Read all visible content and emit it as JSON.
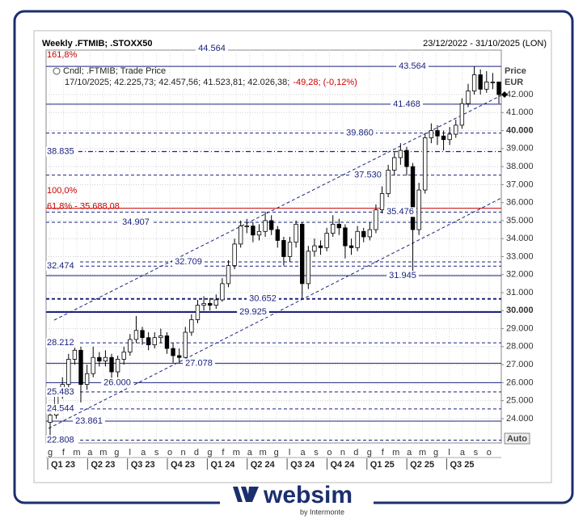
{
  "chart_data": {
    "type": "candlestick",
    "title": "Weekly .FTMIB; .STOXX50",
    "date_range": "23/12/2022 - 31/10/2025 (LON)",
    "legend_title": "Cndl; .FTMIB; Trade Price",
    "legend_values": "17/10/2025; 42.225,73; 42.457,56; 41.523,81; 42.026,38;",
    "legend_change": "-49,28; (-0,12%)",
    "y_axis_label": "Price",
    "y_axis_unit": "EUR",
    "auto_button": "Auto",
    "ylim": [
      22650,
      44470
    ],
    "yticks": [
      {
        "value": 24000,
        "label": "24.000"
      },
      {
        "value": 25000,
        "label": "25.000"
      },
      {
        "value": 26000,
        "label": "26.000"
      },
      {
        "value": 27000,
        "label": "27.000"
      },
      {
        "value": 28000,
        "label": "28.000"
      },
      {
        "value": 29000,
        "label": "29.000"
      },
      {
        "value": 30000,
        "label": "30.000",
        "bold": true
      },
      {
        "value": 31000,
        "label": "31.000"
      },
      {
        "value": 32000,
        "label": "32.000"
      },
      {
        "value": 33000,
        "label": "33.000"
      },
      {
        "value": 34000,
        "label": "34.000"
      },
      {
        "value": 35000,
        "label": "35.000"
      },
      {
        "value": 36000,
        "label": "36.000"
      },
      {
        "value": 37000,
        "label": "37.000"
      },
      {
        "value": 38000,
        "label": "38.000"
      },
      {
        "value": 39000,
        "label": "39.000"
      },
      {
        "value": 40000,
        "label": "40.000",
        "bold": true
      },
      {
        "value": 41000,
        "label": "41.000"
      },
      {
        "value": 42000,
        "label": "42.000"
      }
    ],
    "grid": true,
    "month_labels": [
      "g",
      "f",
      "m",
      "a",
      "m",
      "g",
      "l",
      "a",
      "s",
      "o",
      "n",
      "d",
      "g",
      "f",
      "m",
      "a",
      "m",
      "g",
      "l",
      "a",
      "s",
      "o",
      "n",
      "d",
      "g",
      "f",
      "m",
      "a",
      "m",
      "g",
      "l",
      "a",
      "s",
      "o"
    ],
    "quarter_labels": [
      "Q1 23",
      "Q2 23",
      "Q3 23",
      "Q4 23",
      "Q1 24",
      "Q2 24",
      "Q3 24",
      "Q4 24",
      "Q1 25",
      "Q2 25",
      "Q3 25"
    ],
    "series": [
      {
        "name": ".FTMIB",
        "up_color": "#ffffff",
        "down_color": "#000000",
        "open": [
          23800,
          24200,
          25400,
          25900,
          27300,
          27800,
          25900,
          26500,
          27400,
          27200,
          27400,
          26600,
          27300,
          27700,
          28400,
          28900,
          28500,
          28100,
          28500,
          28600,
          27900,
          27500,
          27400,
          28800,
          29500,
          30300,
          30400,
          30300,
          30600,
          31500,
          32500,
          33700,
          34700,
          34700,
          34200,
          34400,
          35000,
          34500,
          33900,
          33000,
          33800,
          34800,
          31500,
          33300,
          33600,
          33500,
          34300,
          34800,
          34600,
          33600,
          33500,
          34400,
          34100,
          34500,
          35600,
          36500,
          37800,
          38500,
          38900,
          38000,
          34500,
          36700,
          39600,
          40000,
          39700,
          39500,
          39800,
          40300,
          41500,
          42200,
          43100,
          42300,
          42700,
          42700
        ],
        "high": [
          24500,
          25700,
          26300,
          27600,
          28200,
          28000,
          27000,
          28000,
          27700,
          27800,
          27600,
          27500,
          28000,
          28700,
          29700,
          29100,
          28800,
          28800,
          29000,
          28800,
          28200,
          27900,
          29100,
          29800,
          30600,
          30800,
          30700,
          30900,
          31800,
          32800,
          34000,
          35000,
          35100,
          34900,
          34800,
          35500,
          35300,
          34700,
          34100,
          34100,
          35000,
          34900,
          33600,
          34000,
          33900,
          34600,
          35300,
          35100,
          34800,
          34000,
          34700,
          34600,
          34900,
          35900,
          36900,
          38100,
          38800,
          39300,
          39100,
          38200,
          37100,
          39800,
          40400,
          40300,
          40000,
          40200,
          40600,
          41800,
          42600,
          43564,
          43400,
          43300,
          43200,
          42500
        ],
        "low": [
          22900,
          24000,
          25100,
          25700,
          27000,
          24900,
          25600,
          26300,
          26900,
          26900,
          26000,
          26300,
          27000,
          27500,
          28200,
          28100,
          27800,
          27900,
          28200,
          27600,
          27100,
          27078,
          27300,
          28600,
          29300,
          30000,
          30000,
          30100,
          30500,
          31300,
          32300,
          33500,
          34300,
          33800,
          33900,
          34100,
          34200,
          33500,
          32500,
          32700,
          33500,
          30700,
          31200,
          33000,
          33100,
          33300,
          34100,
          34200,
          32900,
          33100,
          33300,
          33800,
          33900,
          34300,
          35400,
          36300,
          37500,
          38100,
          37500,
          31945,
          34200,
          36500,
          39300,
          39200,
          38900,
          39200,
          39600,
          40100,
          41300,
          42000,
          42000,
          42100,
          42300,
          41500
        ],
        "close": [
          24200,
          25400,
          25900,
          27300,
          27800,
          25900,
          26500,
          27400,
          27200,
          27400,
          26600,
          27300,
          27700,
          28400,
          28900,
          28500,
          28100,
          28500,
          28600,
          27900,
          27500,
          27400,
          28800,
          29500,
          30300,
          30400,
          30300,
          30600,
          31500,
          32500,
          33700,
          34700,
          34700,
          34200,
          34400,
          35000,
          34500,
          33900,
          33000,
          33800,
          34800,
          31500,
          33300,
          33600,
          33500,
          34300,
          34800,
          34600,
          33600,
          33500,
          34400,
          34100,
          34500,
          35600,
          36500,
          37800,
          38500,
          38900,
          38000,
          34500,
          36700,
          39600,
          40000,
          39700,
          39500,
          39800,
          40300,
          41500,
          42200,
          43100,
          42300,
          42700,
          42700,
          42000
        ]
      }
    ],
    "levels": [
      {
        "value": 44564,
        "label": "44.564",
        "style": "solid"
      },
      {
        "value": 43564,
        "label": "43.564",
        "style": "solid"
      },
      {
        "value": 41468,
        "label": "41.468",
        "style": "solid"
      },
      {
        "value": 39860,
        "label": "39.860",
        "style": "dashed"
      },
      {
        "value": 38835,
        "label": "38.835",
        "style": "dashdot"
      },
      {
        "value": 37530,
        "label": "37.530",
        "style": "dashed"
      },
      {
        "value": 35476,
        "label": "35.476",
        "style": "dashed"
      },
      {
        "value": 34907,
        "label": "34.907",
        "style": "dashed"
      },
      {
        "value": 32709,
        "label": "32.709",
        "style": "dashed"
      },
      {
        "value": 32474,
        "label": "32.474",
        "style": "dashed"
      },
      {
        "value": 31945,
        "label": "31.945",
        "style": "solid"
      },
      {
        "value": 30652,
        "label": "30.652",
        "style": "dashed-bold"
      },
      {
        "value": 29925,
        "label": "29.925",
        "style": "solid-bold"
      },
      {
        "value": 28212,
        "label": "28.212",
        "style": "dashed"
      },
      {
        "value": 27078,
        "label": "27.078",
        "style": "solid"
      },
      {
        "value": 26000,
        "label": "26.000",
        "style": "solid"
      },
      {
        "value": 25483,
        "label": "25.483",
        "style": "dashed"
      },
      {
        "value": 24544,
        "label": "24.544",
        "style": "dashed"
      },
      {
        "value": 23861,
        "label": "23.861",
        "style": "solid"
      },
      {
        "value": 22808,
        "label": "22.808",
        "style": "dashed"
      }
    ],
    "fib_levels": [
      {
        "value": 35688.08,
        "label": "61,8% - 35.688,08",
        "color": "#cc0000"
      }
    ],
    "annotations": [
      {
        "text": "161,8%",
        "color": "#cc0000"
      },
      {
        "text": "100,0%",
        "color": "#cc0000"
      }
    ]
  },
  "footer": {
    "brand": "websim",
    "tagline": "by Intermonte"
  }
}
